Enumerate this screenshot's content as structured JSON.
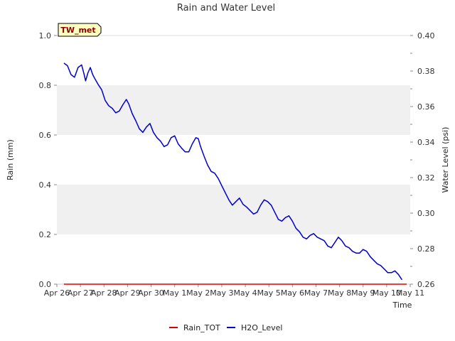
{
  "chart_data": {
    "type": "line",
    "title": "Rain and Water Level",
    "xlabel": "Time",
    "ylabel_left": "Rain (mm)",
    "ylabel_right": "Water Level (psi)",
    "station_badge": "TW_met",
    "x_tick_labels": [
      "Apr 26",
      "Apr 27",
      "Apr 28",
      "Apr 29",
      "Apr 30",
      "May 1",
      "May 2",
      "May 3",
      "May 4",
      "May 5",
      "May 6",
      "May 7",
      "May 8",
      "May 9",
      "May 10",
      "May 11"
    ],
    "y_left_ticks": [
      "0.0",
      "0.2",
      "0.4",
      "0.6",
      "0.8",
      "1.0"
    ],
    "y_right_ticks": [
      "0.26",
      "0.28",
      "0.30",
      "0.32",
      "0.34",
      "0.36",
      "0.38",
      "0.40"
    ],
    "ylim_left": [
      0,
      1
    ],
    "ylim_right": [
      0.26,
      0.4
    ],
    "xlim_days": [
      0,
      15
    ],
    "grid": "horizontal bands",
    "legend_position": "bottom-center",
    "series": [
      {
        "name": "Rain_TOT",
        "axis": "left",
        "color": "#dd0000",
        "points": [
          [
            0.3,
            0.0
          ],
          [
            14.85,
            0.0
          ]
        ]
      },
      {
        "name": "H2O_Level",
        "axis": "right",
        "color": "#0000cc",
        "points": [
          [
            0.3,
            0.3845
          ],
          [
            0.45,
            0.383
          ],
          [
            0.6,
            0.378
          ],
          [
            0.75,
            0.3765
          ],
          [
            0.9,
            0.382
          ],
          [
            1.05,
            0.3835
          ],
          [
            1.15,
            0.3785
          ],
          [
            1.22,
            0.3745
          ],
          [
            1.32,
            0.379
          ],
          [
            1.42,
            0.382
          ],
          [
            1.52,
            0.378
          ],
          [
            1.62,
            0.3755
          ],
          [
            1.75,
            0.3725
          ],
          [
            1.9,
            0.3695
          ],
          [
            2.05,
            0.3635
          ],
          [
            2.2,
            0.3605
          ],
          [
            2.35,
            0.359
          ],
          [
            2.5,
            0.3565
          ],
          [
            2.65,
            0.3575
          ],
          [
            2.8,
            0.361
          ],
          [
            2.95,
            0.364
          ],
          [
            3.05,
            0.3615
          ],
          [
            3.2,
            0.356
          ],
          [
            3.35,
            0.352
          ],
          [
            3.5,
            0.3475
          ],
          [
            3.65,
            0.3455
          ],
          [
            3.8,
            0.3485
          ],
          [
            3.95,
            0.3505
          ],
          [
            4.1,
            0.3455
          ],
          [
            4.25,
            0.3425
          ],
          [
            4.4,
            0.3405
          ],
          [
            4.55,
            0.3375
          ],
          [
            4.7,
            0.3385
          ],
          [
            4.85,
            0.3425
          ],
          [
            5.0,
            0.3435
          ],
          [
            5.15,
            0.339
          ],
          [
            5.3,
            0.3365
          ],
          [
            5.45,
            0.3345
          ],
          [
            5.6,
            0.3345
          ],
          [
            5.75,
            0.339
          ],
          [
            5.9,
            0.3425
          ],
          [
            6.0,
            0.342
          ],
          [
            6.1,
            0.3375
          ],
          [
            6.25,
            0.332
          ],
          [
            6.4,
            0.327
          ],
          [
            6.55,
            0.3235
          ],
          [
            6.7,
            0.3225
          ],
          [
            6.85,
            0.3195
          ],
          [
            7.0,
            0.3155
          ],
          [
            7.15,
            0.3115
          ],
          [
            7.3,
            0.3075
          ],
          [
            7.45,
            0.3045
          ],
          [
            7.6,
            0.3065
          ],
          [
            7.75,
            0.3085
          ],
          [
            7.9,
            0.305
          ],
          [
            8.05,
            0.3035
          ],
          [
            8.2,
            0.3015
          ],
          [
            8.35,
            0.2995
          ],
          [
            8.5,
            0.3005
          ],
          [
            8.65,
            0.3045
          ],
          [
            8.8,
            0.3075
          ],
          [
            8.95,
            0.3065
          ],
          [
            9.1,
            0.3045
          ],
          [
            9.25,
            0.3005
          ],
          [
            9.4,
            0.2965
          ],
          [
            9.55,
            0.2955
          ],
          [
            9.7,
            0.2975
          ],
          [
            9.85,
            0.2985
          ],
          [
            10.0,
            0.2955
          ],
          [
            10.15,
            0.2915
          ],
          [
            10.3,
            0.2895
          ],
          [
            10.45,
            0.2865
          ],
          [
            10.6,
            0.2855
          ],
          [
            10.75,
            0.2875
          ],
          [
            10.9,
            0.2885
          ],
          [
            11.05,
            0.2865
          ],
          [
            11.2,
            0.2855
          ],
          [
            11.35,
            0.2845
          ],
          [
            11.5,
            0.2815
          ],
          [
            11.65,
            0.2805
          ],
          [
            11.8,
            0.2835
          ],
          [
            11.95,
            0.2865
          ],
          [
            12.1,
            0.2845
          ],
          [
            12.25,
            0.2815
          ],
          [
            12.4,
            0.2805
          ],
          [
            12.55,
            0.2785
          ],
          [
            12.7,
            0.2775
          ],
          [
            12.85,
            0.2775
          ],
          [
            13.0,
            0.2795
          ],
          [
            13.15,
            0.2785
          ],
          [
            13.3,
            0.2755
          ],
          [
            13.45,
            0.2735
          ],
          [
            13.6,
            0.2715
          ],
          [
            13.75,
            0.2705
          ],
          [
            13.9,
            0.2685
          ],
          [
            14.05,
            0.2665
          ],
          [
            14.2,
            0.2665
          ],
          [
            14.35,
            0.2675
          ],
          [
            14.5,
            0.2655
          ],
          [
            14.65,
            0.2625
          ]
        ]
      }
    ]
  }
}
